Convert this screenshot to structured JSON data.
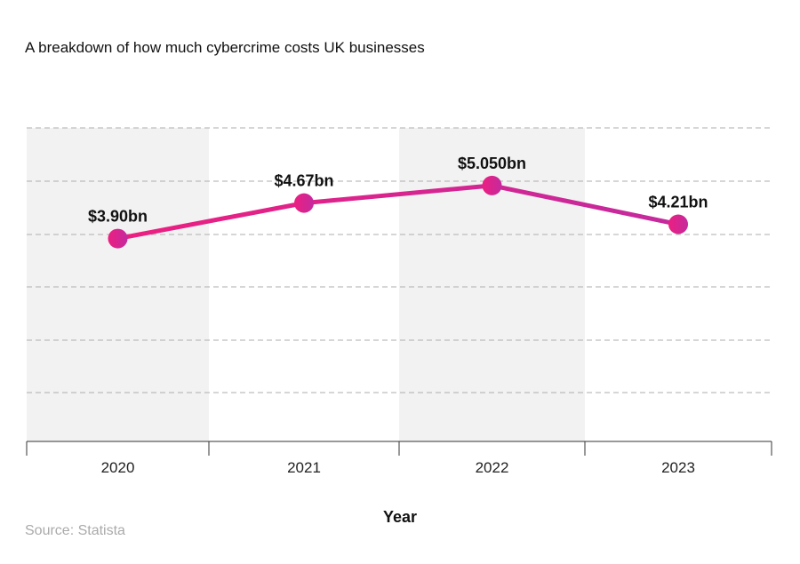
{
  "chart_data": {
    "type": "line",
    "title": "A breakdown of how much cybercrime costs UK businesses",
    "xlabel": "Year",
    "ylabel": "",
    "categories": [
      "2020",
      "2021",
      "2022",
      "2023"
    ],
    "values": [
      3.9,
      4.67,
      5.05,
      4.21
    ],
    "data_labels": [
      "$3.90bn",
      "$4.67bn",
      "$5.050bn",
      "$4.21bn"
    ],
    "ylim": [
      -0.5,
      6.3
    ],
    "grid": true,
    "legend": "none",
    "source": "Source: Statista",
    "colors": {
      "line_start": "#ec1f80",
      "line_end": "#c42a9e",
      "band": "#f2f2f2",
      "grid": "#bdbdbd"
    }
  }
}
